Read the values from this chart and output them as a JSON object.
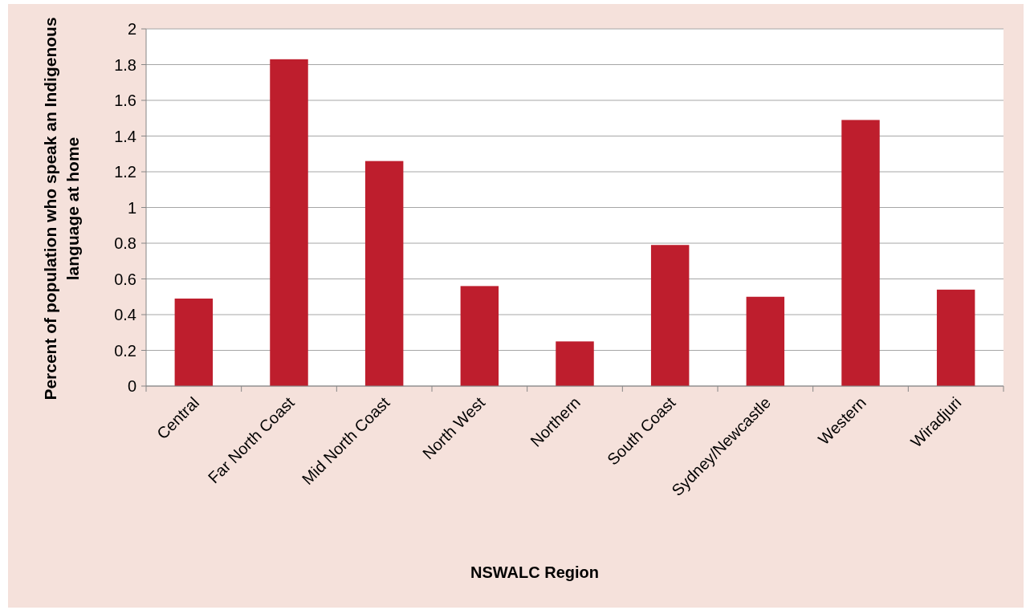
{
  "chart_data": {
    "type": "bar",
    "xlabel": "NSWALC Region",
    "ylabel": "Percent of population who speak an Indigenous language at home",
    "categories": [
      "Central",
      "Far North Coast",
      "Mid North Coast",
      "North West",
      "Northern",
      "South Coast",
      "Sydney/Newcastle",
      "Western",
      "Wiradjuri"
    ],
    "values": [
      0.49,
      1.83,
      1.26,
      0.56,
      0.25,
      0.79,
      0.5,
      1.49,
      0.54
    ],
    "color": "#be1e2d",
    "ylim": [
      0,
      2
    ],
    "yticks": [
      0,
      0.2,
      0.4,
      0.6,
      0.8,
      1,
      1.2,
      1.4,
      1.6,
      1.8,
      2
    ],
    "grid": "y"
  }
}
